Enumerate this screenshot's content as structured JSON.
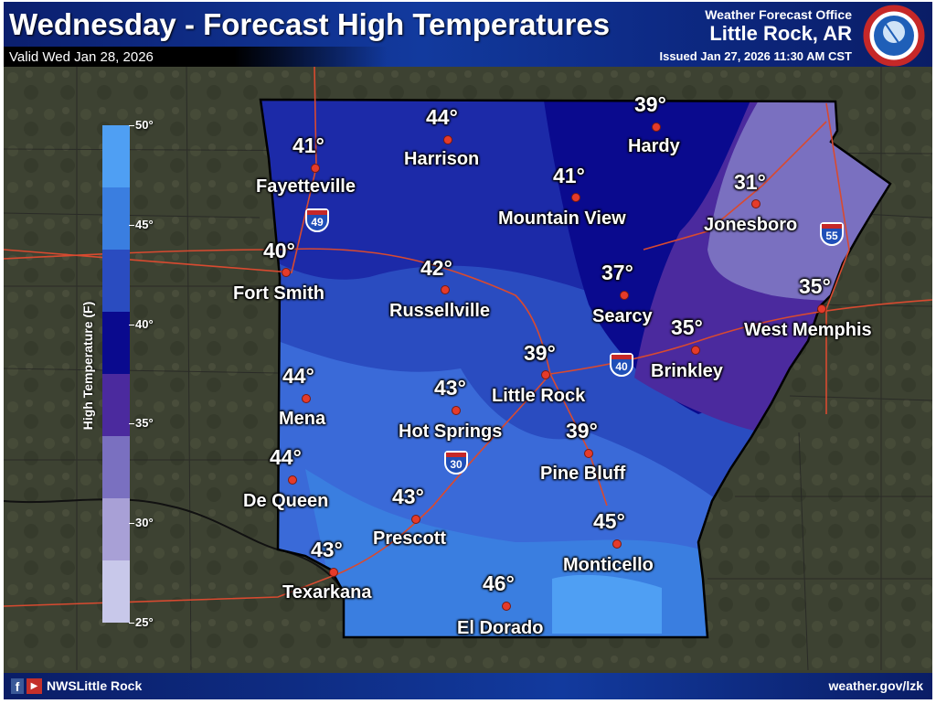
{
  "header": {
    "title": "Wednesday - Forecast High Temperatures",
    "valid": "Valid Wed Jan 28, 2026",
    "office_line": "Weather Forecast Office",
    "office_city": "Little Rock, AR",
    "issued": "Issued Jan 27, 2026 11:30 AM CST",
    "logo_text": "NATIONAL WEATHER SERVICE"
  },
  "legend": {
    "label": "High Temperature (F)",
    "ticks": [
      "50°",
      "45°",
      "40°",
      "35°",
      "30°",
      "25°"
    ],
    "colors": [
      "#4f9ff3",
      "#3a7ee0",
      "#2a4cc0",
      "#0a0a8e",
      "#4b2a9e",
      "#7a70c0",
      "#a8a0d6",
      "#c8c8ea"
    ]
  },
  "cities": [
    {
      "name": "Fayetteville",
      "temp": "41°"
    },
    {
      "name": "Harrison",
      "temp": "44°"
    },
    {
      "name": "Hardy",
      "temp": "39°"
    },
    {
      "name": "Mountain View",
      "temp": "41°"
    },
    {
      "name": "Jonesboro",
      "temp": "31°"
    },
    {
      "name": "Fort Smith",
      "temp": "40°"
    },
    {
      "name": "Russellville",
      "temp": "42°"
    },
    {
      "name": "Searcy",
      "temp": "37°"
    },
    {
      "name": "West Memphis",
      "temp": "35°"
    },
    {
      "name": "Brinkley",
      "temp": "35°"
    },
    {
      "name": "Little Rock",
      "temp": "39°"
    },
    {
      "name": "Mena",
      "temp": "44°"
    },
    {
      "name": "Hot Springs",
      "temp": "43°"
    },
    {
      "name": "Pine Bluff",
      "temp": "39°"
    },
    {
      "name": "De Queen",
      "temp": "44°"
    },
    {
      "name": "Prescott",
      "temp": "43°"
    },
    {
      "name": "Monticello",
      "temp": "45°"
    },
    {
      "name": "Texarkana",
      "temp": "43°"
    },
    {
      "name": "El Dorado",
      "temp": "46°"
    }
  ],
  "interstates": [
    "49",
    "55",
    "40",
    "30"
  ],
  "footer": {
    "social": "NWSLittle Rock",
    "website": "weather.gov/lzk"
  }
}
